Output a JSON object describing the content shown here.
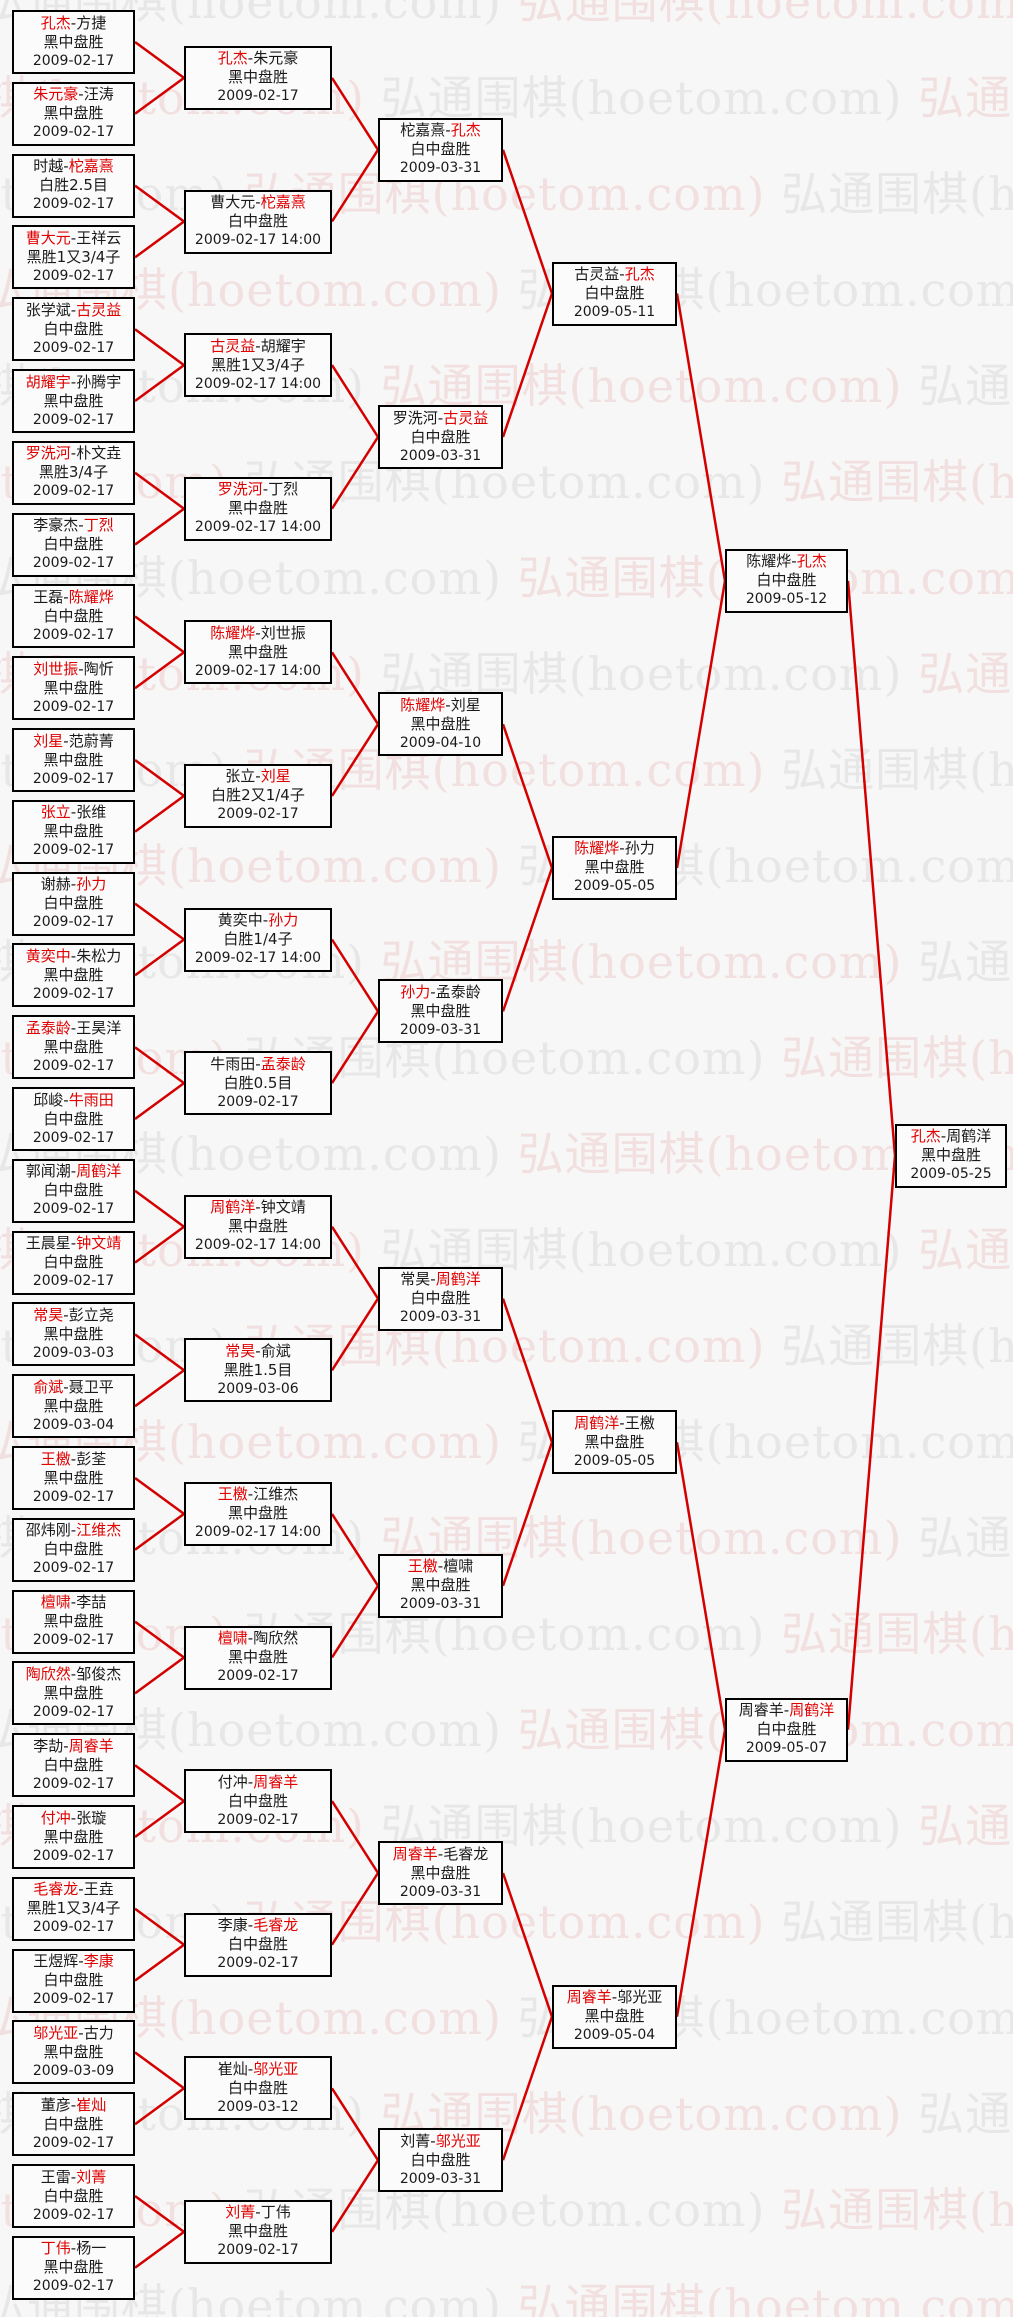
{
  "watermark": {
    "text": "弘通围棋(hoetom.com)"
  },
  "separator": "-",
  "colors": {
    "winner_text": "#e00000",
    "loser_text": "#1a1a1a",
    "connector_line": "#d40000",
    "box_border": "#000000",
    "box_background": "#fbfbfb",
    "page_background": "#f7f7f7",
    "watermark_gray": "#e7e7e7",
    "watermark_pink": "#f2dfdf"
  },
  "rounds": [
    {
      "key": "round1",
      "matches": [
        {
          "p1": "孔杰",
          "p2": "方捷",
          "winner": 1,
          "result": "黑中盘胜",
          "date": "2009-02-17"
        },
        {
          "p1": "朱元豪",
          "p2": "汪涛",
          "winner": 1,
          "result": "黑中盘胜",
          "date": "2009-02-17"
        },
        {
          "p1": "时越",
          "p2": "柁嘉熹",
          "winner": 2,
          "result": "白胜2.5目",
          "date": "2009-02-17"
        },
        {
          "p1": "曹大元",
          "p2": "王祥云",
          "winner": 1,
          "result": "黑胜1又3/4子",
          "date": "2009-02-17"
        },
        {
          "p1": "张学斌",
          "p2": "古灵益",
          "winner": 2,
          "result": "白中盘胜",
          "date": "2009-02-17"
        },
        {
          "p1": "胡耀宇",
          "p2": "孙腾宇",
          "winner": 1,
          "result": "黑中盘胜",
          "date": "2009-02-17"
        },
        {
          "p1": "罗洗河",
          "p2": "朴文垚",
          "winner": 1,
          "result": "黑胜3/4子",
          "date": "2009-02-17"
        },
        {
          "p1": "李豪杰",
          "p2": "丁烈",
          "winner": 2,
          "result": "白中盘胜",
          "date": "2009-02-17"
        },
        {
          "p1": "王磊",
          "p2": "陈耀烨",
          "winner": 2,
          "result": "白中盘胜",
          "date": "2009-02-17"
        },
        {
          "p1": "刘世振",
          "p2": "陶忻",
          "winner": 1,
          "result": "黑中盘胜",
          "date": "2009-02-17"
        },
        {
          "p1": "刘星",
          "p2": "范蔚菁",
          "winner": 1,
          "result": "黑中盘胜",
          "date": "2009-02-17"
        },
        {
          "p1": "张立",
          "p2": "张维",
          "winner": 1,
          "result": "黑中盘胜",
          "date": "2009-02-17"
        },
        {
          "p1": "谢赫",
          "p2": "孙力",
          "winner": 2,
          "result": "白中盘胜",
          "date": "2009-02-17"
        },
        {
          "p1": "黄奕中",
          "p2": "朱松力",
          "winner": 1,
          "result": "黑中盘胜",
          "date": "2009-02-17"
        },
        {
          "p1": "孟泰龄",
          "p2": "王昊洋",
          "winner": 1,
          "result": "黑中盘胜",
          "date": "2009-02-17"
        },
        {
          "p1": "邱峻",
          "p2": "牛雨田",
          "winner": 2,
          "result": "白中盘胜",
          "date": "2009-02-17"
        },
        {
          "p1": "郭闻潮",
          "p2": "周鹤洋",
          "winner": 2,
          "result": "白中盘胜",
          "date": "2009-02-17"
        },
        {
          "p1": "王晨星",
          "p2": "钟文靖",
          "winner": 2,
          "result": "白中盘胜",
          "date": "2009-02-17"
        },
        {
          "p1": "常昊",
          "p2": "彭立尧",
          "winner": 1,
          "result": "黑中盘胜",
          "date": "2009-03-03"
        },
        {
          "p1": "俞斌",
          "p2": "聂卫平",
          "winner": 1,
          "result": "黑中盘胜",
          "date": "2009-03-04"
        },
        {
          "p1": "王檄",
          "p2": "彭荃",
          "winner": 1,
          "result": "黑中盘胜",
          "date": "2009-02-17"
        },
        {
          "p1": "邵炜刚",
          "p2": "江维杰",
          "winner": 2,
          "result": "白中盘胜",
          "date": "2009-02-17"
        },
        {
          "p1": "檀啸",
          "p2": "李喆",
          "winner": 1,
          "result": "黑中盘胜",
          "date": "2009-02-17"
        },
        {
          "p1": "陶欣然",
          "p2": "邹俊杰",
          "winner": 1,
          "result": "黑中盘胜",
          "date": "2009-02-17"
        },
        {
          "p1": "李劼",
          "p2": "周睿羊",
          "winner": 2,
          "result": "白中盘胜",
          "date": "2009-02-17"
        },
        {
          "p1": "付冲",
          "p2": "张璇",
          "winner": 1,
          "result": "黑中盘胜",
          "date": "2009-02-17"
        },
        {
          "p1": "毛睿龙",
          "p2": "王垚",
          "winner": 1,
          "result": "黑胜1又3/4子",
          "date": "2009-02-17"
        },
        {
          "p1": "王煜辉",
          "p2": "李康",
          "winner": 2,
          "result": "白中盘胜",
          "date": "2009-02-17"
        },
        {
          "p1": "邬光亚",
          "p2": "古力",
          "winner": 1,
          "result": "黑中盘胜",
          "date": "2009-03-09"
        },
        {
          "p1": "董彦",
          "p2": "崔灿",
          "winner": 2,
          "result": "白中盘胜",
          "date": "2009-02-17"
        },
        {
          "p1": "王雷",
          "p2": "刘菁",
          "winner": 2,
          "result": "白中盘胜",
          "date": "2009-02-17"
        },
        {
          "p1": "丁伟",
          "p2": "杨一",
          "winner": 1,
          "result": "黑中盘胜",
          "date": "2009-02-17"
        }
      ]
    },
    {
      "key": "round2",
      "matches": [
        {
          "p1": "孔杰",
          "p2": "朱元豪",
          "winner": 1,
          "result": "黑中盘胜",
          "date": "2009-02-17"
        },
        {
          "p1": "曹大元",
          "p2": "柁嘉熹",
          "winner": 2,
          "result": "白中盘胜",
          "date": "2009-02-17 14:00"
        },
        {
          "p1": "古灵益",
          "p2": "胡耀宇",
          "winner": 1,
          "result": "黑胜1又3/4子",
          "date": "2009-02-17 14:00"
        },
        {
          "p1": "罗洗河",
          "p2": "丁烈",
          "winner": 1,
          "result": "黑中盘胜",
          "date": "2009-02-17 14:00"
        },
        {
          "p1": "陈耀烨",
          "p2": "刘世振",
          "winner": 1,
          "result": "黑中盘胜",
          "date": "2009-02-17 14:00"
        },
        {
          "p1": "张立",
          "p2": "刘星",
          "winner": 2,
          "result": "白胜2又1/4子",
          "date": "2009-02-17"
        },
        {
          "p1": "黄奕中",
          "p2": "孙力",
          "winner": 2,
          "result": "白胜1/4子",
          "date": "2009-02-17 14:00"
        },
        {
          "p1": "牛雨田",
          "p2": "孟泰龄",
          "winner": 2,
          "result": "白胜0.5目",
          "date": "2009-02-17"
        },
        {
          "p1": "周鹤洋",
          "p2": "钟文靖",
          "winner": 1,
          "result": "黑中盘胜",
          "date": "2009-02-17 14:00"
        },
        {
          "p1": "常昊",
          "p2": "俞斌",
          "winner": 1,
          "result": "黑胜1.5目",
          "date": "2009-03-06"
        },
        {
          "p1": "王檄",
          "p2": "江维杰",
          "winner": 1,
          "result": "黑中盘胜",
          "date": "2009-02-17 14:00"
        },
        {
          "p1": "檀啸",
          "p2": "陶欣然",
          "winner": 1,
          "result": "黑中盘胜",
          "date": "2009-02-17"
        },
        {
          "p1": "付冲",
          "p2": "周睿羊",
          "winner": 2,
          "result": "白中盘胜",
          "date": "2009-02-17"
        },
        {
          "p1": "李康",
          "p2": "毛睿龙",
          "winner": 2,
          "result": "白中盘胜",
          "date": "2009-02-17"
        },
        {
          "p1": "崔灿",
          "p2": "邬光亚",
          "winner": 2,
          "result": "白中盘胜",
          "date": "2009-03-12"
        },
        {
          "p1": "刘菁",
          "p2": "丁伟",
          "winner": 1,
          "result": "黑中盘胜",
          "date": "2009-02-17"
        }
      ]
    },
    {
      "key": "round3",
      "matches": [
        {
          "p1": "柁嘉熹",
          "p2": "孔杰",
          "winner": 2,
          "result": "白中盘胜",
          "date": "2009-03-31"
        },
        {
          "p1": "罗洗河",
          "p2": "古灵益",
          "winner": 2,
          "result": "白中盘胜",
          "date": "2009-03-31"
        },
        {
          "p1": "陈耀烨",
          "p2": "刘星",
          "winner": 1,
          "result": "黑中盘胜",
          "date": "2009-04-10"
        },
        {
          "p1": "孙力",
          "p2": "孟泰龄",
          "winner": 1,
          "result": "黑中盘胜",
          "date": "2009-03-31"
        },
        {
          "p1": "常昊",
          "p2": "周鹤洋",
          "winner": 2,
          "result": "白中盘胜",
          "date": "2009-03-31"
        },
        {
          "p1": "王檄",
          "p2": "檀啸",
          "winner": 1,
          "result": "黑中盘胜",
          "date": "2009-03-31"
        },
        {
          "p1": "周睿羊",
          "p2": "毛睿龙",
          "winner": 1,
          "result": "黑中盘胜",
          "date": "2009-03-31"
        },
        {
          "p1": "刘菁",
          "p2": "邬光亚",
          "winner": 2,
          "result": "白中盘胜",
          "date": "2009-03-31"
        }
      ]
    },
    {
      "key": "quarterfinal",
      "matches": [
        {
          "p1": "古灵益",
          "p2": "孔杰",
          "winner": 2,
          "result": "白中盘胜",
          "date": "2009-05-11"
        },
        {
          "p1": "陈耀烨",
          "p2": "孙力",
          "winner": 1,
          "result": "黑中盘胜",
          "date": "2009-05-05"
        },
        {
          "p1": "周鹤洋",
          "p2": "王檄",
          "winner": 1,
          "result": "黑中盘胜",
          "date": "2009-05-05"
        },
        {
          "p1": "周睿羊",
          "p2": "邬光亚",
          "winner": 1,
          "result": "黑中盘胜",
          "date": "2009-05-04"
        }
      ]
    },
    {
      "key": "semifinal",
      "matches": [
        {
          "p1": "陈耀烨",
          "p2": "孔杰",
          "winner": 2,
          "result": "白中盘胜",
          "date": "2009-05-12"
        },
        {
          "p1": "周睿羊",
          "p2": "周鹤洋",
          "winner": 2,
          "result": "白中盘胜",
          "date": "2009-05-07"
        }
      ]
    },
    {
      "key": "final",
      "matches": [
        {
          "p1": "孔杰",
          "p2": "周鹤洋",
          "winner": 1,
          "result": "黑中盘胜",
          "date": "2009-05-25"
        }
      ]
    }
  ]
}
